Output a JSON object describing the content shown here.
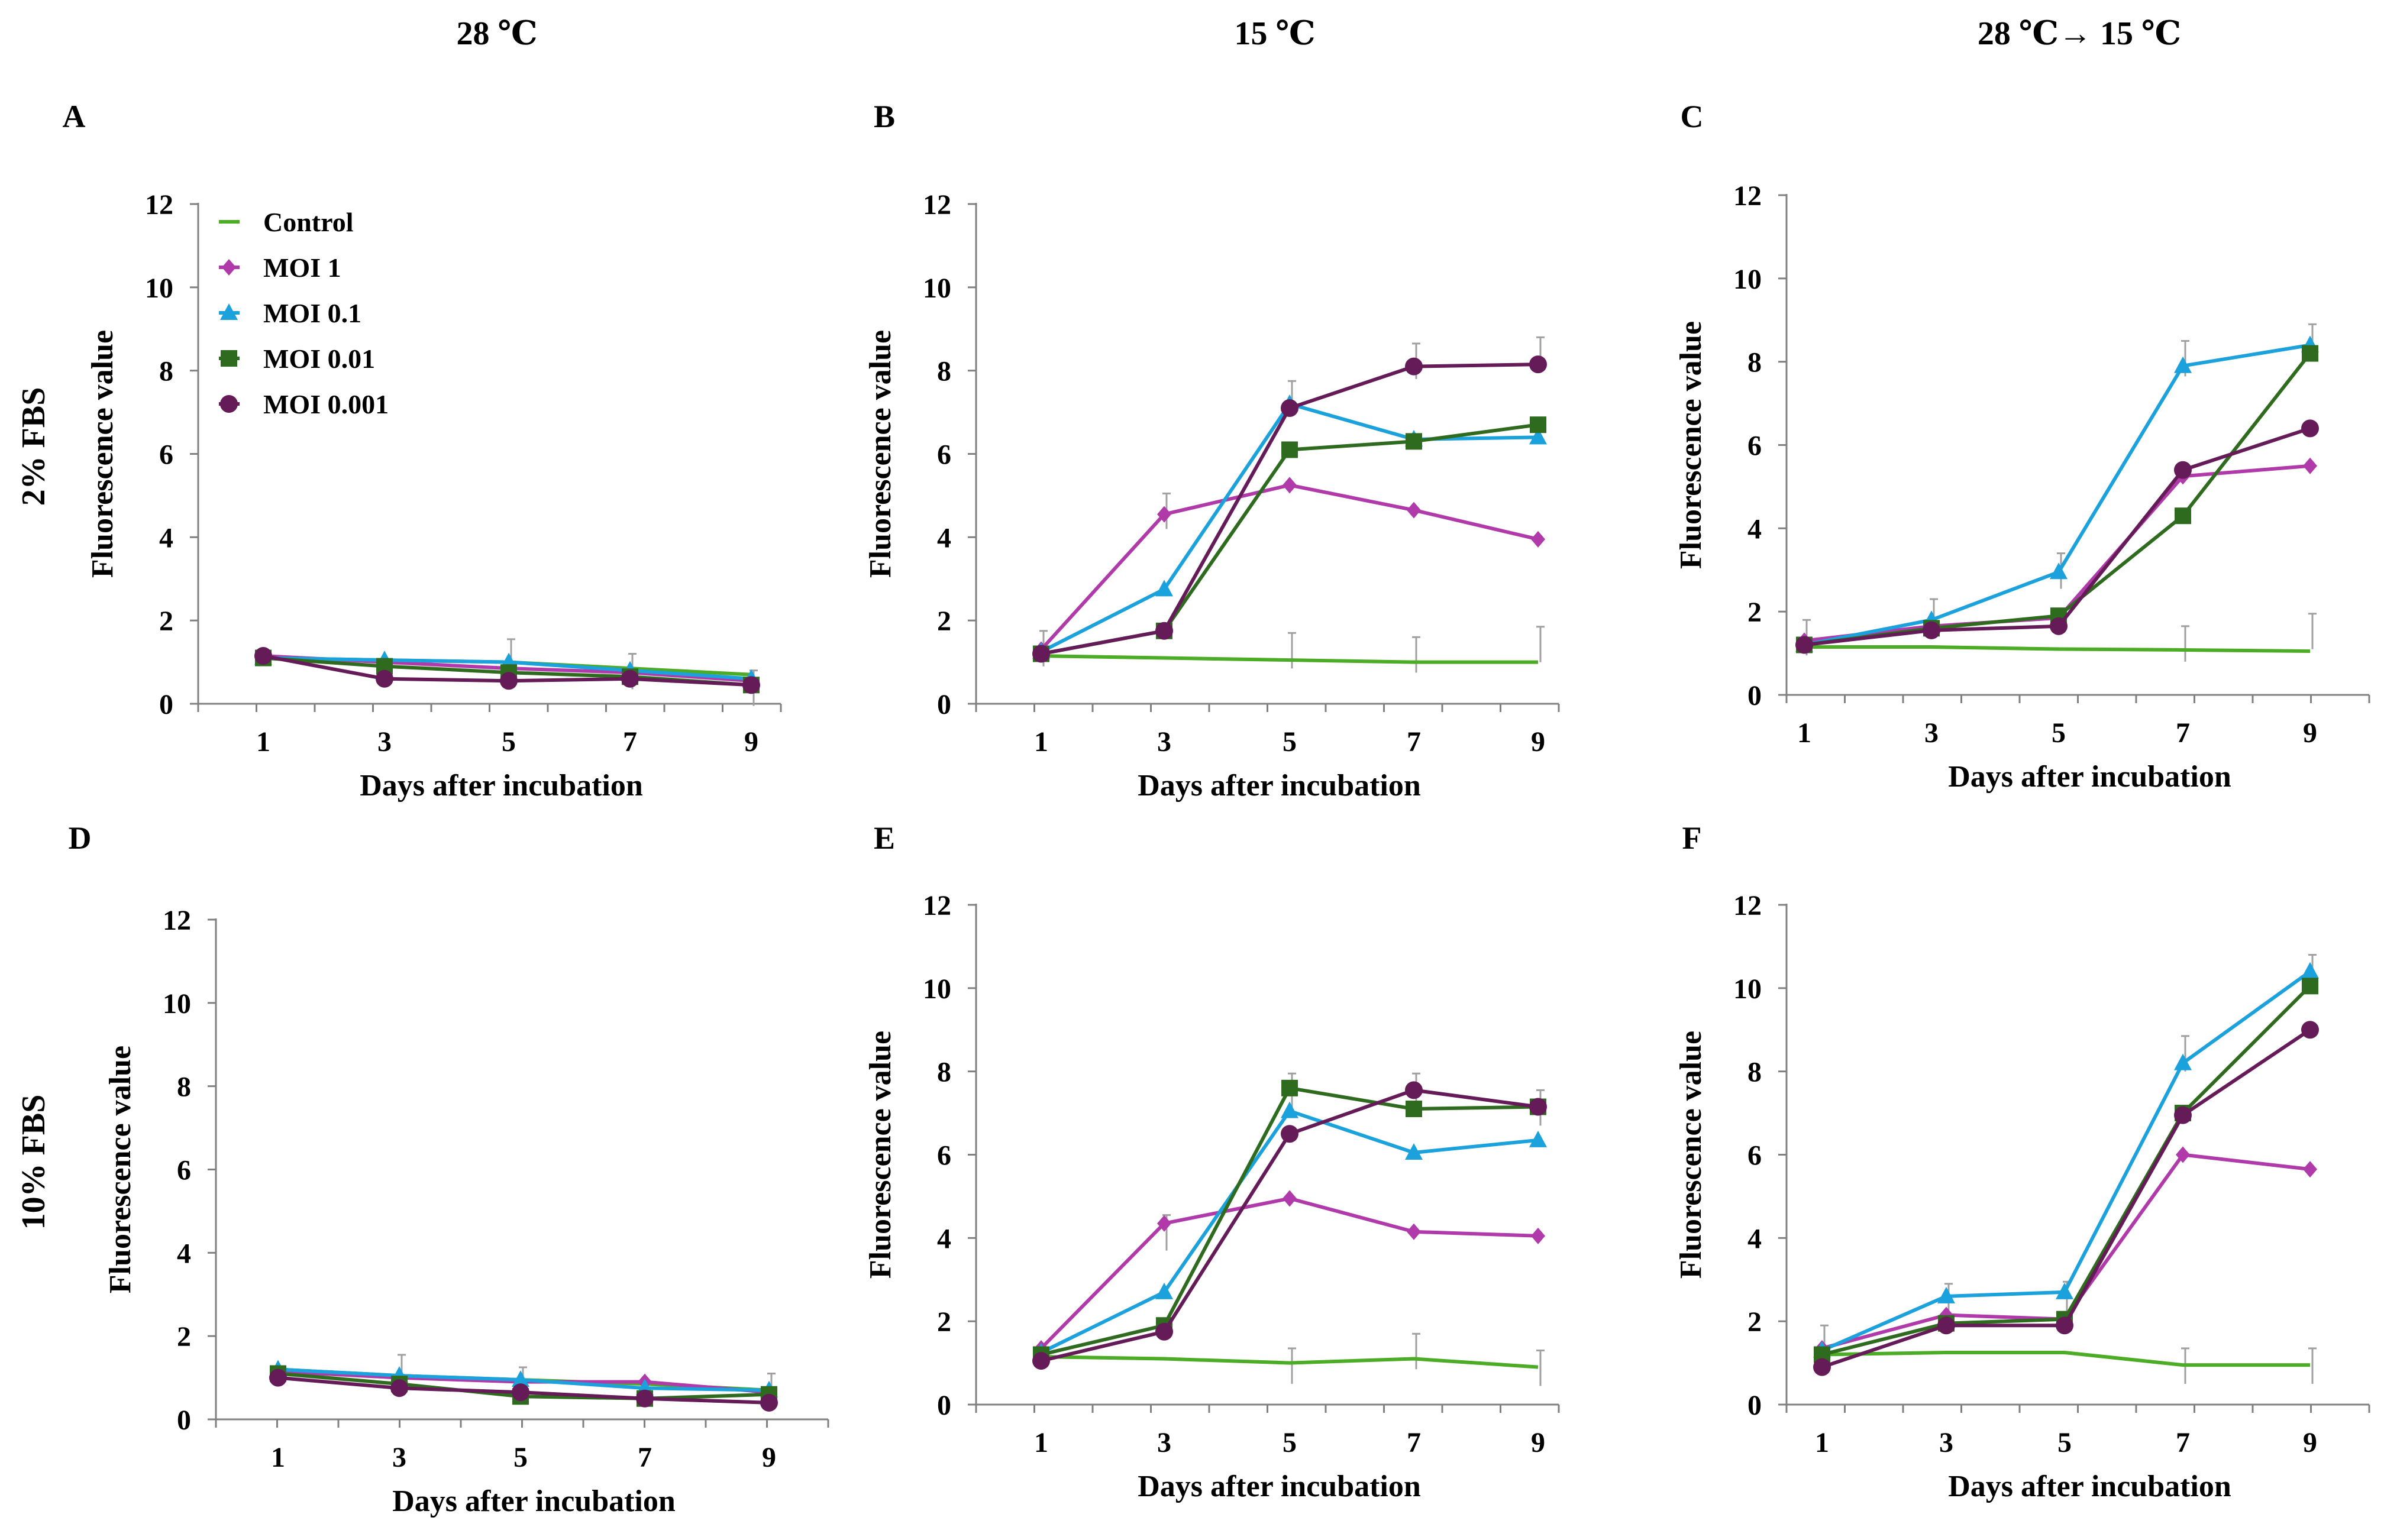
{
  "column_titles": [
    "28 ℃",
    "15 ℃",
    "28 ℃→ 15 ℃"
  ],
  "row_titles": [
    "2% FBS",
    "10% FBS"
  ],
  "colors": {
    "Control": "#4dac26",
    "MOI 1": "#b03aa9",
    "MOI 0.1": "#1ba1dc",
    "MOI 0.01": "#2f6b1f",
    "MOI 0.001": "#651b57",
    "axis": "#808080",
    "error": "#a0a0a0"
  },
  "markers": {
    "Control": "dash",
    "MOI 1": "diamond",
    "MOI 0.1": "triangle",
    "MOI 0.01": "square",
    "MOI 0.001": "circle"
  },
  "legend": [
    "Control",
    "MOI 1",
    "MOI 0.1",
    "MOI 0.01",
    "MOI 0.001"
  ],
  "chart_data": [
    {
      "panel": "A",
      "type": "line",
      "title": "",
      "xlabel": "Days after incubation",
      "ylabel": "Fluorescence value",
      "x": [
        1,
        3,
        5,
        7,
        9
      ],
      "ylim": [
        0,
        12
      ],
      "yticks": [
        0,
        2,
        4,
        6,
        8,
        10,
        12
      ],
      "legend_position": "top-left",
      "series": [
        {
          "name": "Control",
          "values": [
            1.1,
            1.05,
            1.0,
            0.85,
            0.7
          ]
        },
        {
          "name": "MOI 1",
          "values": [
            1.15,
            1.0,
            0.85,
            0.75,
            0.55
          ]
        },
        {
          "name": "MOI 0.1",
          "values": [
            1.1,
            1.05,
            1.0,
            0.8,
            0.6
          ]
        },
        {
          "name": "MOI 0.01",
          "values": [
            1.1,
            0.9,
            0.75,
            0.65,
            0.45
          ]
        },
        {
          "name": "MOI 0.001",
          "values": [
            1.15,
            0.6,
            0.55,
            0.6,
            0.45
          ]
        }
      ],
      "error_bars": [
        {
          "x": 5,
          "top": 1.55
        },
        {
          "x": 7,
          "top": 1.2
        },
        {
          "x": 9,
          "top": 0.8
        }
      ]
    },
    {
      "panel": "B",
      "type": "line",
      "title": "",
      "xlabel": "Days after incubation",
      "ylabel": "Fluorescence value",
      "x": [
        1,
        3,
        5,
        7,
        9
      ],
      "ylim": [
        0,
        12
      ],
      "yticks": [
        0,
        2,
        4,
        6,
        8,
        10,
        12
      ],
      "series": [
        {
          "name": "Control",
          "values": [
            1.15,
            1.1,
            1.05,
            1.0,
            1.0
          ]
        },
        {
          "name": "MOI 1",
          "values": [
            1.3,
            4.55,
            5.25,
            4.65,
            3.95
          ]
        },
        {
          "name": "MOI 0.1",
          "values": [
            1.25,
            2.75,
            7.2,
            6.35,
            6.4
          ]
        },
        {
          "name": "MOI 0.01",
          "values": [
            1.2,
            1.75,
            6.1,
            6.3,
            6.7
          ]
        },
        {
          "name": "MOI 0.001",
          "values": [
            1.2,
            1.75,
            7.1,
            8.1,
            8.15
          ]
        }
      ],
      "error_bars": [
        {
          "x": 1,
          "top": 1.75
        },
        {
          "x": 3,
          "top": 5.05
        },
        {
          "x": 5,
          "top": 7.75
        },
        {
          "x": 7,
          "top": 8.65
        },
        {
          "x": 9,
          "top": 8.8
        },
        {
          "x": 5,
          "top": 1.7
        },
        {
          "x": 7,
          "top": 1.6
        },
        {
          "x": 9,
          "top": 1.85
        }
      ]
    },
    {
      "panel": "C",
      "type": "line",
      "title": "",
      "xlabel": "Days after incubation",
      "ylabel": "Fluorescence value",
      "x": [
        1,
        3,
        5,
        7,
        9
      ],
      "ylim": [
        0,
        12
      ],
      "yticks": [
        0,
        2,
        4,
        6,
        8,
        10,
        12
      ],
      "series": [
        {
          "name": "Control",
          "values": [
            1.15,
            1.15,
            1.1,
            1.08,
            1.05
          ]
        },
        {
          "name": "MOI 1",
          "values": [
            1.3,
            1.65,
            1.85,
            5.25,
            5.5
          ]
        },
        {
          "name": "MOI 0.1",
          "values": [
            1.2,
            1.8,
            2.95,
            7.9,
            8.4
          ]
        },
        {
          "name": "MOI 0.01",
          "values": [
            1.2,
            1.6,
            1.9,
            4.3,
            8.2
          ]
        },
        {
          "name": "MOI 0.001",
          "values": [
            1.2,
            1.55,
            1.65,
            5.4,
            6.4
          ]
        }
      ],
      "error_bars": [
        {
          "x": 1,
          "top": 1.8
        },
        {
          "x": 3,
          "top": 2.3
        },
        {
          "x": 5,
          "top": 3.4
        },
        {
          "x": 7,
          "top": 8.5
        },
        {
          "x": 9,
          "top": 8.9
        },
        {
          "x": 7,
          "top": 1.65
        },
        {
          "x": 9,
          "top": 1.95
        }
      ]
    },
    {
      "panel": "D",
      "type": "line",
      "title": "",
      "xlabel": "Days after incubation",
      "ylabel": "Fluorescence value",
      "x": [
        1,
        3,
        5,
        7,
        9
      ],
      "ylim": [
        0,
        12
      ],
      "yticks": [
        0,
        2,
        4,
        6,
        8,
        10,
        12
      ],
      "series": [
        {
          "name": "Control",
          "values": [
            1.2,
            1.05,
            0.95,
            0.85,
            0.7
          ]
        },
        {
          "name": "MOI 1",
          "values": [
            1.15,
            1.0,
            0.9,
            0.9,
            0.65
          ]
        },
        {
          "name": "MOI 0.1",
          "values": [
            1.2,
            1.05,
            0.95,
            0.75,
            0.7
          ]
        },
        {
          "name": "MOI 0.01",
          "values": [
            1.1,
            0.85,
            0.55,
            0.5,
            0.6
          ]
        },
        {
          "name": "MOI 0.001",
          "values": [
            1.0,
            0.75,
            0.65,
            0.5,
            0.4
          ]
        }
      ],
      "error_bars": [
        {
          "x": 3,
          "top": 1.55
        },
        {
          "x": 5,
          "top": 1.25
        },
        {
          "x": 9,
          "top": 1.1
        }
      ]
    },
    {
      "panel": "E",
      "type": "line",
      "title": "",
      "xlabel": "Days after incubation",
      "ylabel": "Fluorescence value",
      "x": [
        1,
        3,
        5,
        7,
        9
      ],
      "ylim": [
        0,
        12
      ],
      "yticks": [
        0,
        2,
        4,
        6,
        8,
        10,
        12
      ],
      "series": [
        {
          "name": "Control",
          "values": [
            1.15,
            1.1,
            1.0,
            1.1,
            0.9
          ]
        },
        {
          "name": "MOI 1",
          "values": [
            1.35,
            4.35,
            4.95,
            4.15,
            4.05
          ]
        },
        {
          "name": "MOI 0.1",
          "values": [
            1.25,
            2.7,
            7.05,
            6.05,
            6.35
          ]
        },
        {
          "name": "MOI 0.01",
          "values": [
            1.2,
            1.9,
            7.6,
            7.1,
            7.15
          ]
        },
        {
          "name": "MOI 0.001",
          "values": [
            1.05,
            1.75,
            6.5,
            7.55,
            7.15
          ]
        }
      ],
      "error_bars": [
        {
          "x": 3,
          "top": 4.55
        },
        {
          "x": 5,
          "top": 7.95
        },
        {
          "x": 7,
          "top": 7.95
        },
        {
          "x": 9,
          "top": 7.55
        },
        {
          "x": 5,
          "top": 1.35
        },
        {
          "x": 7,
          "top": 1.7
        },
        {
          "x": 9,
          "top": 1.3
        }
      ]
    },
    {
      "panel": "F",
      "type": "line",
      "title": "",
      "xlabel": "Days after incubation",
      "ylabel": "Fluorescence value",
      "x": [
        1,
        3,
        5,
        7,
        9
      ],
      "ylim": [
        0,
        12
      ],
      "yticks": [
        0,
        2,
        4,
        6,
        8,
        10,
        12
      ],
      "series": [
        {
          "name": "Control",
          "values": [
            1.2,
            1.25,
            1.25,
            0.95,
            0.95
          ]
        },
        {
          "name": "MOI 1",
          "values": [
            1.35,
            2.15,
            2.05,
            6.0,
            5.65
          ]
        },
        {
          "name": "MOI 0.1",
          "values": [
            1.3,
            2.6,
            2.7,
            8.2,
            10.4
          ]
        },
        {
          "name": "MOI 0.01",
          "values": [
            1.2,
            1.95,
            2.05,
            7.0,
            10.05
          ]
        },
        {
          "name": "MOI 0.001",
          "values": [
            0.9,
            1.9,
            1.9,
            6.95,
            9.0
          ]
        }
      ],
      "error_bars": [
        {
          "x": 1,
          "top": 1.9
        },
        {
          "x": 3,
          "top": 2.9
        },
        {
          "x": 5,
          "top": 2.95
        },
        {
          "x": 7,
          "top": 8.85
        },
        {
          "x": 9,
          "top": 10.8
        },
        {
          "x": 7,
          "top": 1.35
        },
        {
          "x": 9,
          "top": 1.35
        }
      ]
    }
  ]
}
